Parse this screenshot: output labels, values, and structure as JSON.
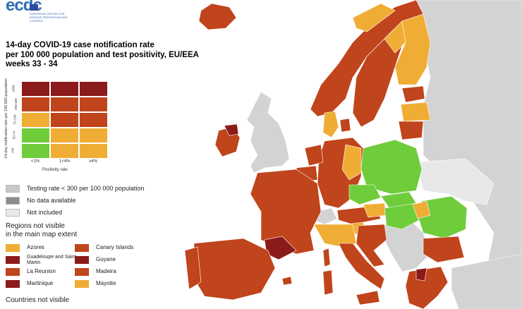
{
  "header": {
    "logo_text": "ecdc",
    "logo_sub": "EUROPEAN CENTRE FOR DISEASE PREVENTION AND CONTROL",
    "title_lines": [
      "14-day COVID-19 case notification rate",
      "per 100 000 population and test positivity, EU/EEA",
      "weeks 33 - 34"
    ]
  },
  "matrix": {
    "y_axis_label": "14-day notification rate per 100 000 population",
    "x_axis_label": "Positivity rate",
    "x_ticks": [
      "<1%",
      "1<4%",
      "≥4%"
    ],
    "y_ticks": [
      "≥500",
      "200-499",
      "75-199",
      "50-74",
      "<50"
    ],
    "colors": [
      [
        "#8b1a1a",
        "#8b1a1a",
        "#8b1a1a"
      ],
      [
        "#c0441c",
        "#c0441c",
        "#c0441c"
      ],
      [
        "#f0ad35",
        "#c0441c",
        "#c0441c"
      ],
      [
        "#6fcc3b",
        "#f0ad35",
        "#f0ad35"
      ],
      [
        "#6fcc3b",
        "#f0ad35",
        "#f0ad35"
      ]
    ]
  },
  "legend": {
    "items": [
      {
        "label": "Testing rate < 300 per 100 000 population",
        "color": "#c8c8c8"
      },
      {
        "label": "No data available",
        "color": "#8c8c8c"
      },
      {
        "label": "Not included",
        "color": "#e8e8e8"
      }
    ]
  },
  "regions": {
    "title_line1": "Regions not visible",
    "title_line2": "in the main map extent",
    "items": [
      {
        "label": "Azores",
        "color": "#f0ad35"
      },
      {
        "label": "Canary Islands",
        "color": "#c0441c"
      },
      {
        "label": "Guadeloupe and Saint Martin",
        "color": "#8b1a1a"
      },
      {
        "label": "Guyane",
        "color": "#8b1a1a"
      },
      {
        "label": "La Reunion",
        "color": "#c0441c"
      },
      {
        "label": "Madeira",
        "color": "#c0441c"
      },
      {
        "label": "Martinique",
        "color": "#8b1a1a"
      },
      {
        "label": "Mayotte",
        "color": "#f0ad35"
      }
    ]
  },
  "countries": {
    "title": "Countries not visible"
  },
  "palette": {
    "dark_red": "#8b1a1a",
    "red": "#c0441c",
    "orange": "#f0ad35",
    "green": "#6fcc3b",
    "grey_non_eu": "#d3d3d3",
    "sea": "#ffffff"
  }
}
